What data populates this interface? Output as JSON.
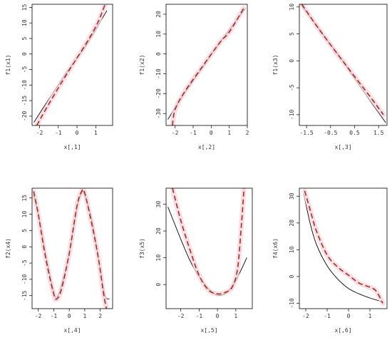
{
  "colors": {
    "true_curve": "#000000",
    "fitted_curve": "#a0301e",
    "band": "#f6d3dc",
    "frame": "#000000"
  },
  "chart_data": [
    {
      "type": "line",
      "xlabel": "x[,1]",
      "ylabel": "f1(x1)",
      "xlim": [
        -2.4,
        1.9
      ],
      "ylim": [
        -23,
        16
      ],
      "xticks": [
        "-2",
        "-1",
        "0",
        "1"
      ],
      "yticks": [
        "-20",
        "-15",
        "-10",
        "-5",
        "0",
        "5",
        "10",
        "15"
      ],
      "series": [
        {
          "role": "true",
          "x": [
            -2.3,
            -1.5,
            -0.5,
            0.5,
            1.6
          ],
          "y": [
            -22,
            -14.5,
            -5.5,
            3,
            14
          ]
        },
        {
          "role": "fitted",
          "x": [
            -2.15,
            -1.5,
            -0.5,
            0.5,
            1.1,
            1.5
          ],
          "y": [
            -23,
            -16,
            -6,
            3.5,
            10,
            16
          ]
        }
      ]
    },
    {
      "type": "line",
      "xlabel": "x[,2]",
      "ylabel": "f1(x2)",
      "xlim": [
        -2.5,
        2.0
      ],
      "ylim": [
        -36,
        25
      ],
      "xticks": [
        "-2",
        "-1",
        "0",
        "1",
        "2"
      ],
      "yticks": [
        "-30",
        "-20",
        "-10",
        "0",
        "10",
        "20"
      ],
      "series": [
        {
          "role": "true",
          "x": [
            -2.4,
            -1.5,
            -0.5,
            0.5,
            1.9
          ],
          "y": [
            -33,
            -20,
            -7,
            6,
            23
          ]
        },
        {
          "role": "fitted",
          "x": [
            -2.15,
            -2.0,
            -1.5,
            -0.5,
            0.5,
            1.0,
            1.8
          ],
          "y": [
            -36,
            -28,
            -19.5,
            -6.5,
            6,
            11,
            23
          ]
        }
      ]
    },
    {
      "type": "line",
      "xlabel": "x[,3]",
      "ylabel": "f1(x3)",
      "xlim": [
        -1.8,
        1.85
      ],
      "ylim": [
        -12,
        10.5
      ],
      "xticks": [
        "-1.5",
        "-0.5",
        "0.5",
        "1.5"
      ],
      "yticks": [
        "-10",
        "-5",
        "0",
        "5",
        "10"
      ],
      "series": [
        {
          "role": "true",
          "x": [
            -1.7,
            -1.0,
            0.0,
            1.0,
            1.8
          ],
          "y": [
            10.3,
            6,
            0,
            -6.5,
            -11.5
          ]
        },
        {
          "role": "fitted",
          "x": [
            -1.7,
            -1.0,
            0.0,
            1.0,
            1.7
          ],
          "y": [
            10.5,
            6,
            0,
            -5.8,
            -10
          ]
        }
      ]
    },
    {
      "type": "line",
      "xlabel": "x[,4]",
      "ylabel": "f2(x4)",
      "xlim": [
        -2.4,
        2.8
      ],
      "ylim": [
        -19,
        18
      ],
      "xticks": [
        "-2",
        "-1",
        "0",
        "1",
        "2"
      ],
      "yticks": [
        "-15",
        "-10",
        "-5",
        "0",
        "5",
        "10",
        "15"
      ],
      "series": [
        {
          "role": "true",
          "x": [
            -2.3,
            -2.0,
            -1.5,
            -1.0,
            -0.8,
            -0.5,
            0.0,
            0.5,
            0.8,
            1.0,
            1.5,
            2.0,
            2.3,
            2.6
          ],
          "y": [
            16,
            10,
            -3,
            -14,
            -15.5,
            -12,
            -2,
            12,
            16.5,
            16,
            7,
            -7,
            -15,
            -16
          ]
        },
        {
          "role": "fitted",
          "x": [
            -2.3,
            -2.0,
            -1.5,
            -1.0,
            -0.8,
            -0.5,
            0.0,
            0.5,
            0.8,
            1.0,
            1.5,
            1.9,
            2.2,
            2.4
          ],
          "y": [
            17,
            10,
            -4,
            -14.5,
            -16,
            -13,
            -2,
            12.5,
            17,
            16.5,
            6,
            -4,
            -14,
            -19
          ]
        }
      ]
    },
    {
      "type": "line",
      "xlabel": "x[,5]",
      "ylabel": "f3(x5)",
      "xlim": [
        -2.8,
        1.9
      ],
      "ylim": [
        -9,
        36
      ],
      "xticks": [
        "-2",
        "-1",
        "0",
        "1"
      ],
      "yticks": [
        "0",
        "10",
        "20",
        "30"
      ],
      "series": [
        {
          "role": "true",
          "x": [
            -2.7,
            -2.0,
            -1.5,
            -1.0,
            -0.5,
            0.0,
            0.5,
            1.0,
            1.6
          ],
          "y": [
            29,
            17,
            9,
            3,
            -1.5,
            -4,
            -3,
            1.5,
            10
          ]
        },
        {
          "role": "fitted",
          "x": [
            -2.45,
            -2.0,
            -1.5,
            -1.0,
            -0.5,
            0.0,
            0.4,
            0.8,
            1.1,
            1.3,
            1.45
          ],
          "y": [
            36,
            24,
            13,
            3.5,
            -2,
            -3.5,
            -3,
            -1,
            6,
            22,
            36
          ]
        }
      ]
    },
    {
      "type": "line",
      "xlabel": "x[,6]",
      "ylabel": "f4(x6)",
      "xlim": [
        -2.3,
        1.8
      ],
      "ylim": [
        -12,
        33
      ],
      "xticks": [
        "-2",
        "-1",
        "0",
        "1"
      ],
      "yticks": [
        "-10",
        "0",
        "10",
        "20",
        "30"
      ],
      "series": [
        {
          "role": "true",
          "x": [
            -2.1,
            -1.8,
            -1.5,
            -1.0,
            -0.5,
            0.0,
            0.5,
            1.0,
            1.6
          ],
          "y": [
            31,
            20,
            12,
            4,
            -1,
            -4.5,
            -6.5,
            -8,
            -9.5
          ]
        },
        {
          "role": "fitted",
          "x": [
            -2.05,
            -1.8,
            -1.5,
            -1.0,
            -0.5,
            0.0,
            0.5,
            1.0,
            1.3,
            1.6
          ],
          "y": [
            32,
            25,
            17,
            8,
            3.5,
            0.5,
            -2.5,
            -4,
            -5.5,
            -10
          ]
        }
      ]
    }
  ]
}
